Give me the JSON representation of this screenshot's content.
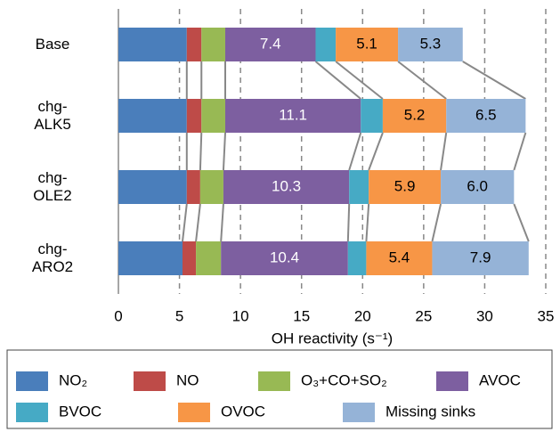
{
  "chart_data": {
    "type": "stacked-barh",
    "categories": [
      "Base",
      "chg-\nALK5",
      "chg-\nOLE2",
      "chg-\nARO2"
    ],
    "series": [
      {
        "name": "NO₂",
        "color": "#4a7ebb",
        "values": [
          5.6,
          5.6,
          5.6,
          5.25
        ]
      },
      {
        "name": "NO",
        "color": "#be4b48",
        "values": [
          1.2,
          1.2,
          1.1,
          1.1
        ]
      },
      {
        "name": "O₃+CO+SO₂",
        "color": "#98b954",
        "values": [
          1.95,
          1.95,
          1.9,
          2.05
        ]
      },
      {
        "name": "AVOC",
        "color": "#7d5fa0",
        "values": [
          7.4,
          11.1,
          10.3,
          10.4
        ],
        "value_labels": [
          "7.4",
          "11.1",
          "10.3",
          "10.4"
        ],
        "label_color": "#ffffff"
      },
      {
        "name": "BVOC",
        "color": "#46aac5",
        "values": [
          1.65,
          1.8,
          1.6,
          1.5
        ]
      },
      {
        "name": "OVOC",
        "color": "#f79646",
        "values": [
          5.1,
          5.2,
          5.9,
          5.4
        ],
        "value_labels": [
          "5.1",
          "5.2",
          "5.9",
          "5.4"
        ],
        "label_color": "#000000"
      },
      {
        "name": "Missing sinks",
        "color": "#95b3d7",
        "values": [
          5.3,
          6.5,
          6.0,
          7.9
        ],
        "value_labels": [
          "5.3",
          "6.5",
          "6.0",
          "7.9"
        ],
        "label_color": "#000000"
      }
    ],
    "xlabel": "OH reactivity (s⁻¹)",
    "xlim": [
      0,
      35
    ],
    "xticks": [
      0,
      5,
      10,
      15,
      20,
      25,
      30,
      35
    ],
    "grid": true,
    "legend": "bottom",
    "series_lines": true
  }
}
